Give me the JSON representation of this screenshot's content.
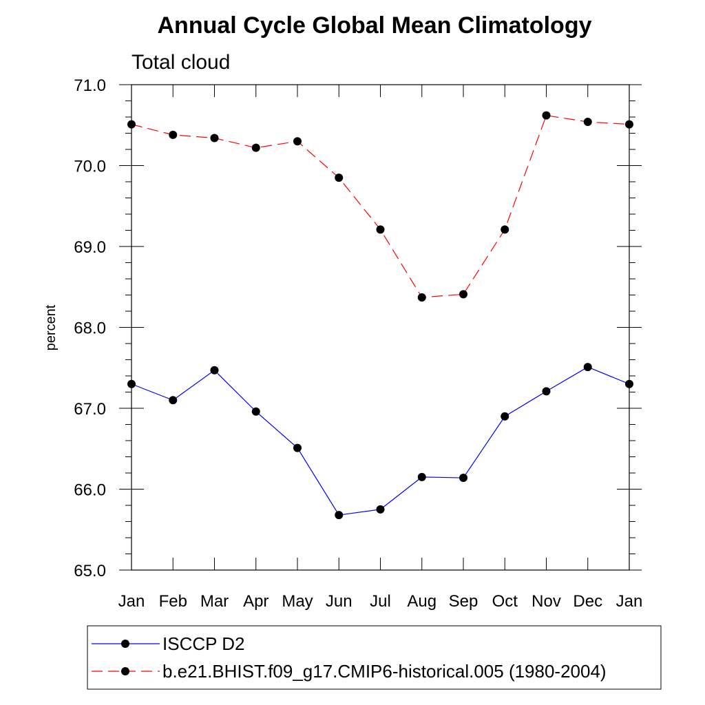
{
  "chart_data": {
    "type": "line",
    "title": "Annual Cycle Global Mean Climatology",
    "subtitle": "Total cloud",
    "xlabel": "",
    "ylabel": "percent",
    "categories": [
      "Jan",
      "Feb",
      "Mar",
      "Apr",
      "May",
      "Jun",
      "Jul",
      "Aug",
      "Sep",
      "Oct",
      "Nov",
      "Dec",
      "Jan"
    ],
    "ylim": [
      65.0,
      71.0
    ],
    "yticks": [
      "65.0",
      "66.0",
      "67.0",
      "68.0",
      "69.0",
      "70.0",
      "71.0"
    ],
    "grid": false,
    "legend_position": "bottom",
    "series": [
      {
        "name": "ISCCP D2",
        "color": "#0000ff",
        "line_style": "solid",
        "marker": "circle",
        "values": [
          67.3,
          67.1,
          67.47,
          66.96,
          66.51,
          65.68,
          65.75,
          66.15,
          66.14,
          66.9,
          67.21,
          67.51,
          67.3
        ]
      },
      {
        "name": "b.e21.BHIST.f09_g17.CMIP6-historical.005 (1980-2004)",
        "color": "#ff0000",
        "line_style": "dashed",
        "marker": "circle",
        "values": [
          70.51,
          70.38,
          70.34,
          70.22,
          70.3,
          69.85,
          69.21,
          68.37,
          68.41,
          69.21,
          70.62,
          70.54,
          70.51
        ]
      }
    ]
  }
}
